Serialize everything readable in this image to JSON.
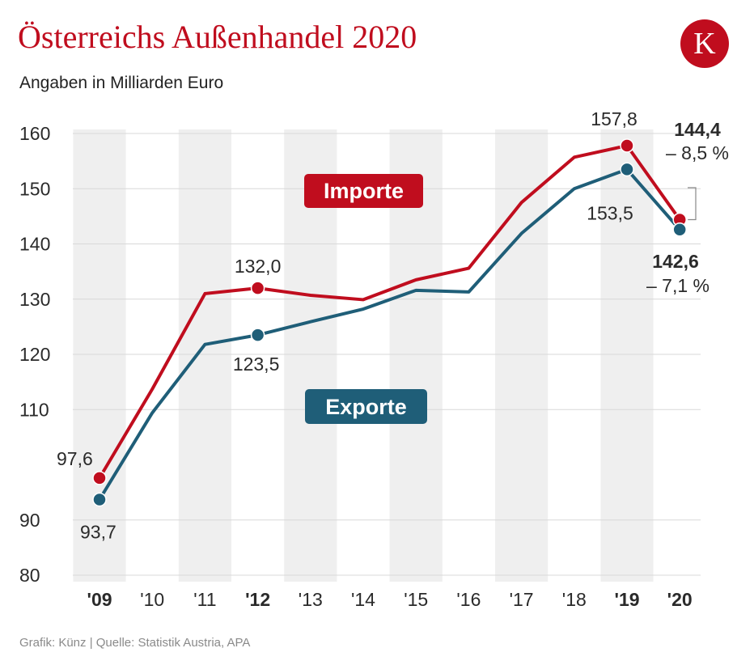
{
  "header": {
    "title": "Österreichs Außenhandel 2020",
    "subtitle": "Angaben in Milliarden Euro",
    "logo_letter": "K"
  },
  "footer": {
    "source": "Grafik: Künz | Quelle: Statistik Austria, APA"
  },
  "colors": {
    "imports": "#c00d1e",
    "exports": "#1f5e78",
    "band": "#efefef",
    "text": "#2a2a2a"
  },
  "chart_data": {
    "type": "line",
    "title": "Österreichs Außenhandel 2020",
    "ylabel": "Angaben in Milliarden Euro",
    "ylim": [
      80,
      160
    ],
    "yticks": [
      160,
      150,
      140,
      130,
      120,
      110,
      90,
      80
    ],
    "categories": [
      "'09",
      "'10",
      "'11",
      "'12",
      "'13",
      "'14",
      "'15",
      "'16",
      "'17",
      "'18",
      "'19",
      "'20"
    ],
    "bold_categories": [
      "'09",
      "'12",
      "'19",
      "'20"
    ],
    "series": [
      {
        "name": "Importe",
        "values": [
          97.6,
          113.7,
          131.0,
          132.0,
          130.7,
          129.9,
          133.5,
          135.6,
          147.5,
          155.7,
          157.8,
          144.4
        ]
      },
      {
        "name": "Exporte",
        "values": [
          93.7,
          109.4,
          121.8,
          123.5,
          125.9,
          128.2,
          131.6,
          131.3,
          141.9,
          150.0,
          153.5,
          142.6
        ]
      }
    ],
    "annotations": {
      "imp_2009": "97,6",
      "exp_2009": "93,7",
      "imp_2012": "132,0",
      "exp_2012": "123,5",
      "imp_2019": "157,8",
      "exp_2019": "153,5",
      "imp_2020": "144,4",
      "imp_2020_change": "– 8,5 %",
      "exp_2020": "142,6",
      "exp_2020_change": "– 7,1 %"
    },
    "legend": {
      "imports": "Importe",
      "exports": "Exporte"
    }
  }
}
